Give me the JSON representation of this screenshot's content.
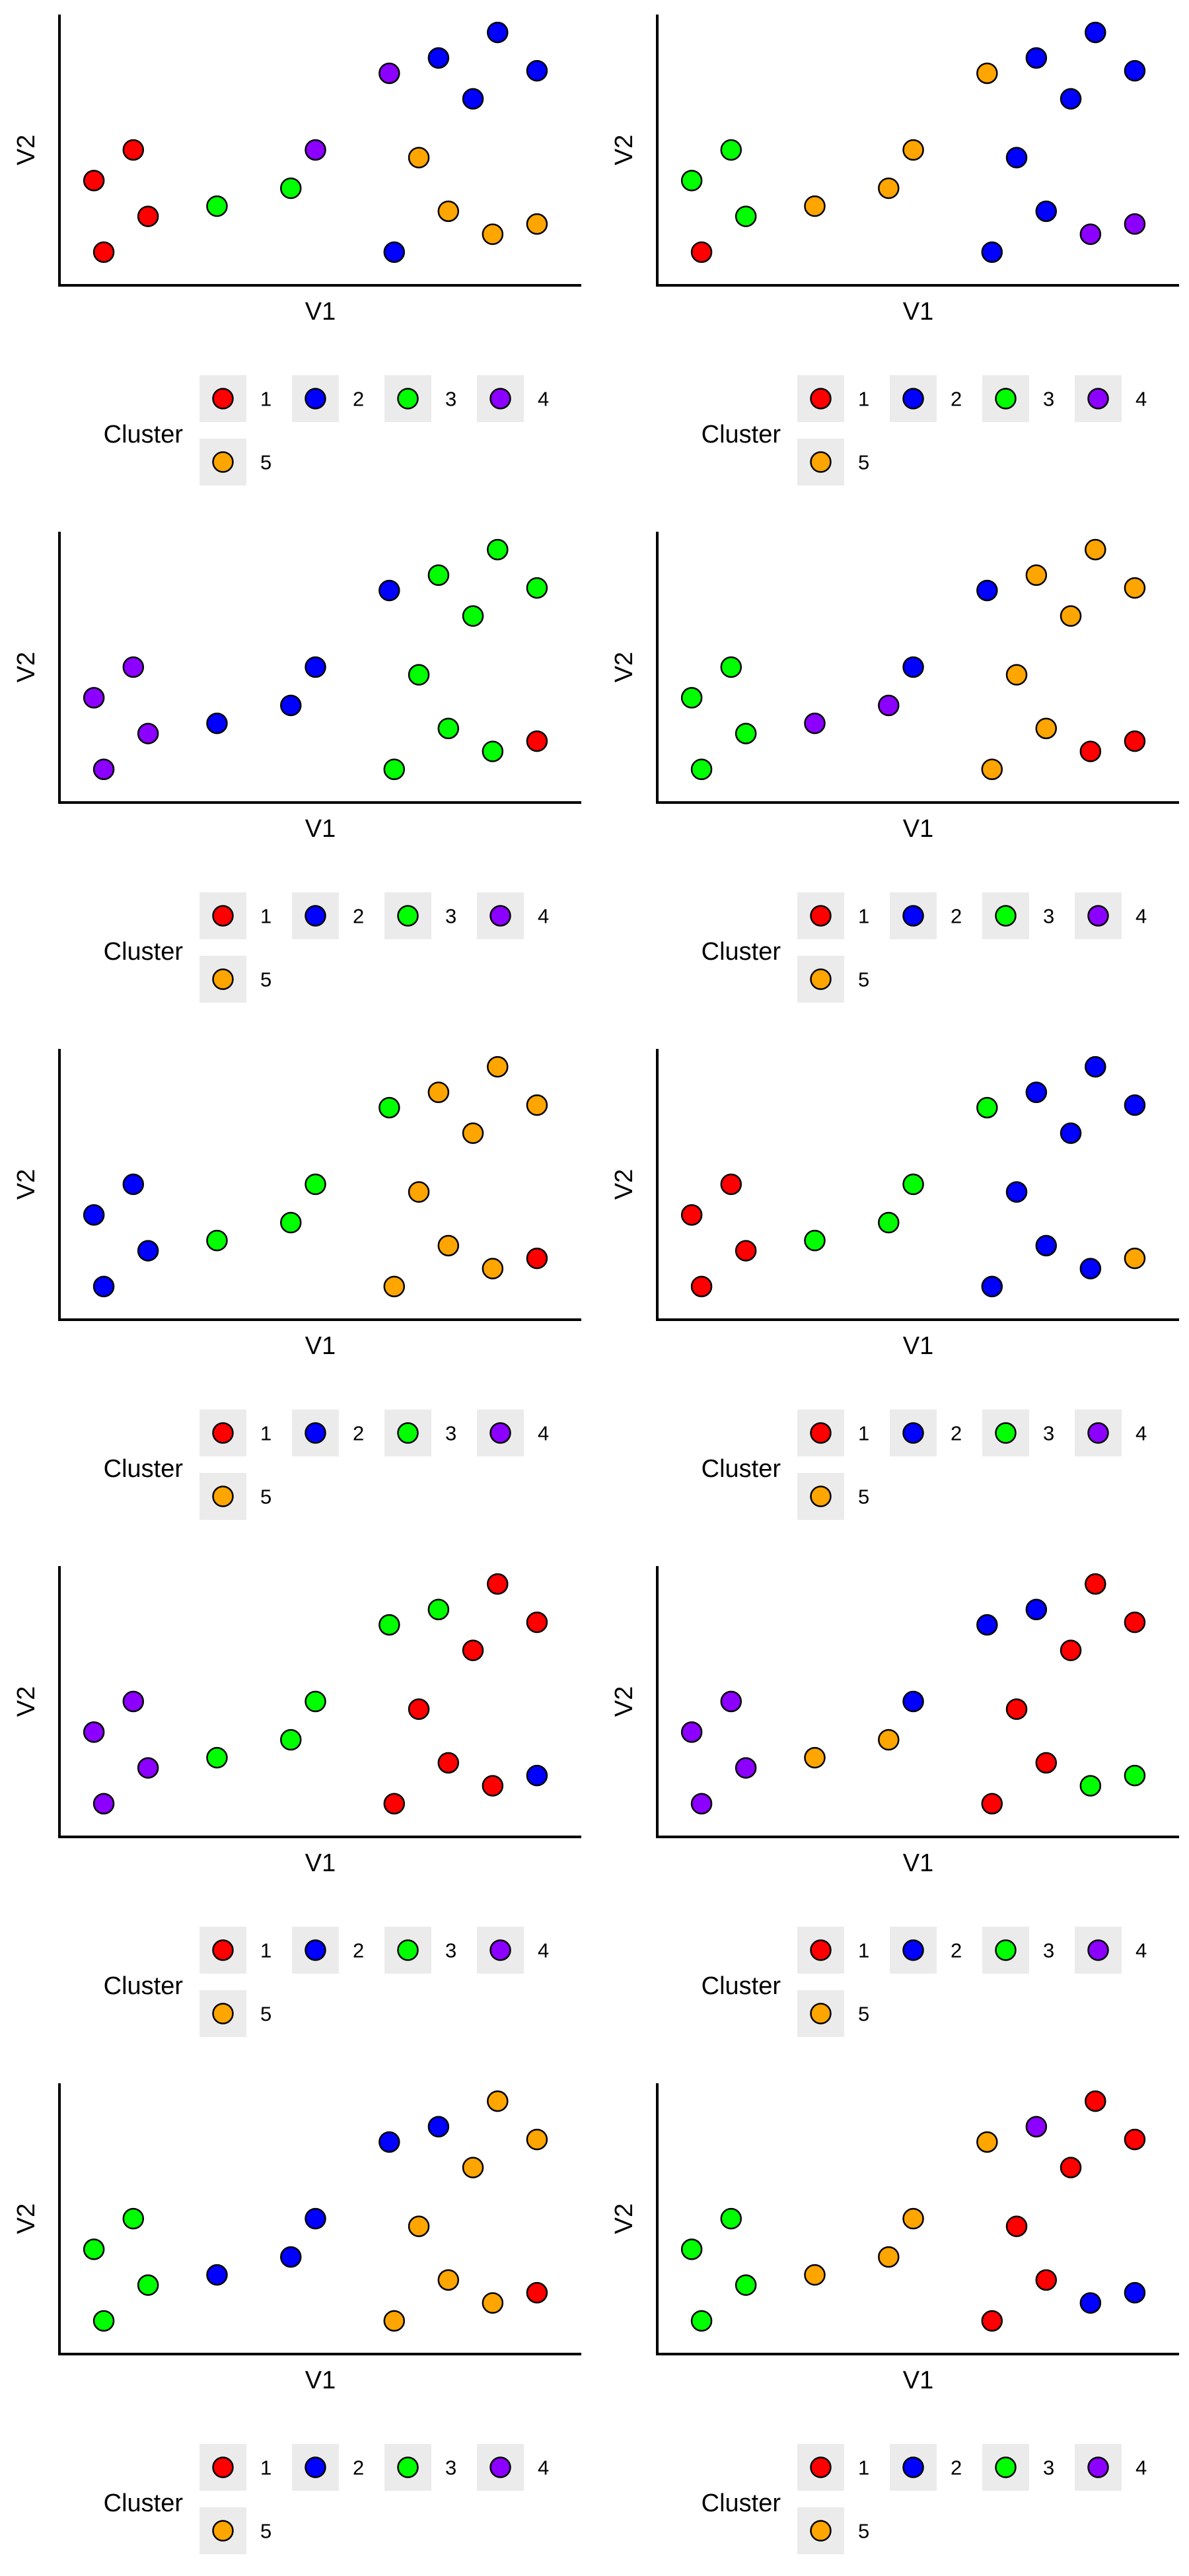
{
  "figure": {
    "xlabel": "V1",
    "ylabel": "V2",
    "legend": {
      "title": "Cluster",
      "entries": [
        {
          "label": "1",
          "color": "#ff0000"
        },
        {
          "label": "2",
          "color": "#0000ff"
        },
        {
          "label": "3",
          "color": "#00ff00"
        },
        {
          "label": "4",
          "color": "#8b00ff"
        },
        {
          "label": "5",
          "color": "#ffa500"
        }
      ]
    }
  },
  "chart_data": [
    {
      "type": "scatter",
      "title": "",
      "xlabel": "V1",
      "ylabel": "V2",
      "legend_title": "Cluster",
      "xlim": [
        0,
        100
      ],
      "ylim": [
        0,
        100
      ],
      "grid": false,
      "legend_position": "bottom",
      "x": [
        4,
        12,
        6,
        15,
        29,
        44,
        49,
        64,
        70,
        65,
        76,
        86,
        81,
        94,
        74,
        85,
        94
      ],
      "y": [
        38,
        50,
        10,
        24,
        28,
        35,
        50,
        80,
        47,
        10,
        26,
        96,
        70,
        81,
        86,
        17,
        21
      ],
      "cluster": [
        "1",
        "1",
        "1",
        "1",
        "3",
        "3",
        "4",
        "4",
        "5",
        "2",
        "5",
        "2",
        "2",
        "2",
        "2",
        "5",
        "5"
      ]
    },
    {
      "type": "scatter",
      "title": "",
      "xlabel": "V1",
      "ylabel": "V2",
      "legend_title": "Cluster",
      "xlim": [
        0,
        100
      ],
      "ylim": [
        0,
        100
      ],
      "grid": false,
      "legend_position": "bottom",
      "x": [
        4,
        12,
        6,
        15,
        29,
        44,
        49,
        64,
        70,
        65,
        76,
        86,
        81,
        94,
        74,
        85,
        94
      ],
      "y": [
        38,
        50,
        10,
        24,
        28,
        35,
        50,
        80,
        47,
        10,
        26,
        96,
        70,
        81,
        86,
        17,
        21
      ],
      "cluster": [
        "3",
        "3",
        "1",
        "3",
        "5",
        "5",
        "5",
        "5",
        "2",
        "2",
        "2",
        "2",
        "2",
        "2",
        "2",
        "4",
        "4"
      ]
    },
    {
      "type": "scatter",
      "title": "",
      "xlabel": "V1",
      "ylabel": "V2",
      "legend_title": "Cluster",
      "xlim": [
        0,
        100
      ],
      "ylim": [
        0,
        100
      ],
      "grid": false,
      "legend_position": "bottom",
      "x": [
        4,
        12,
        6,
        15,
        29,
        44,
        49,
        64,
        70,
        65,
        76,
        86,
        81,
        94,
        74,
        85,
        94
      ],
      "y": [
        38,
        50,
        10,
        24,
        28,
        35,
        50,
        80,
        47,
        10,
        26,
        96,
        70,
        81,
        86,
        17,
        21
      ],
      "cluster": [
        "4",
        "4",
        "4",
        "4",
        "2",
        "2",
        "2",
        "2",
        "3",
        "3",
        "3",
        "3",
        "3",
        "3",
        "3",
        "3",
        "1"
      ]
    },
    {
      "type": "scatter",
      "title": "",
      "xlabel": "V1",
      "ylabel": "V2",
      "legend_title": "Cluster",
      "xlim": [
        0,
        100
      ],
      "ylim": [
        0,
        100
      ],
      "grid": false,
      "legend_position": "bottom",
      "x": [
        4,
        12,
        6,
        15,
        29,
        44,
        49,
        64,
        70,
        65,
        76,
        86,
        81,
        94,
        74,
        85,
        94
      ],
      "y": [
        38,
        50,
        10,
        24,
        28,
        35,
        50,
        80,
        47,
        10,
        26,
        96,
        70,
        81,
        86,
        17,
        21
      ],
      "cluster": [
        "3",
        "3",
        "3",
        "3",
        "4",
        "4",
        "2",
        "2",
        "5",
        "5",
        "5",
        "5",
        "5",
        "5",
        "5",
        "1",
        "1"
      ]
    },
    {
      "type": "scatter",
      "title": "",
      "xlabel": "V1",
      "ylabel": "V2",
      "legend_title": "Cluster",
      "xlim": [
        0,
        100
      ],
      "ylim": [
        0,
        100
      ],
      "grid": false,
      "legend_position": "bottom",
      "x": [
        4,
        12,
        6,
        15,
        29,
        44,
        49,
        64,
        70,
        65,
        76,
        86,
        81,
        94,
        74,
        85,
        94
      ],
      "y": [
        38,
        50,
        10,
        24,
        28,
        35,
        50,
        80,
        47,
        10,
        26,
        96,
        70,
        81,
        86,
        17,
        21
      ],
      "cluster": [
        "2",
        "2",
        "2",
        "2",
        "3",
        "3",
        "3",
        "3",
        "5",
        "5",
        "5",
        "5",
        "5",
        "5",
        "5",
        "5",
        "1"
      ]
    },
    {
      "type": "scatter",
      "title": "",
      "xlabel": "V1",
      "ylabel": "V2",
      "legend_title": "Cluster",
      "xlim": [
        0,
        100
      ],
      "ylim": [
        0,
        100
      ],
      "grid": false,
      "legend_position": "bottom",
      "x": [
        4,
        12,
        6,
        15,
        29,
        44,
        49,
        64,
        70,
        65,
        76,
        86,
        81,
        94,
        74,
        85,
        94
      ],
      "y": [
        38,
        50,
        10,
        24,
        28,
        35,
        50,
        80,
        47,
        10,
        26,
        96,
        70,
        81,
        86,
        17,
        21
      ],
      "cluster": [
        "1",
        "1",
        "1",
        "1",
        "3",
        "3",
        "3",
        "3",
        "2",
        "2",
        "2",
        "2",
        "2",
        "2",
        "2",
        "2",
        "5"
      ]
    },
    {
      "type": "scatter",
      "title": "",
      "xlabel": "V1",
      "ylabel": "V2",
      "legend_title": "Cluster",
      "xlim": [
        0,
        100
      ],
      "ylim": [
        0,
        100
      ],
      "grid": false,
      "legend_position": "bottom",
      "x": [
        4,
        12,
        6,
        15,
        29,
        44,
        49,
        64,
        70,
        65,
        76,
        86,
        81,
        94,
        74,
        85,
        94
      ],
      "y": [
        38,
        50,
        10,
        24,
        28,
        35,
        50,
        80,
        47,
        10,
        26,
        96,
        70,
        81,
        86,
        17,
        21
      ],
      "cluster": [
        "4",
        "4",
        "4",
        "4",
        "3",
        "3",
        "3",
        "3",
        "1",
        "1",
        "1",
        "1",
        "1",
        "1",
        "3",
        "1",
        "2"
      ]
    },
    {
      "type": "scatter",
      "title": "",
      "xlabel": "V1",
      "ylabel": "V2",
      "legend_title": "Cluster",
      "xlim": [
        0,
        100
      ],
      "ylim": [
        0,
        100
      ],
      "grid": false,
      "legend_position": "bottom",
      "x": [
        4,
        12,
        6,
        15,
        29,
        44,
        49,
        64,
        70,
        65,
        76,
        86,
        81,
        94,
        74,
        85,
        94
      ],
      "y": [
        38,
        50,
        10,
        24,
        28,
        35,
        50,
        80,
        47,
        10,
        26,
        96,
        70,
        81,
        86,
        17,
        21
      ],
      "cluster": [
        "4",
        "4",
        "4",
        "4",
        "5",
        "5",
        "2",
        "2",
        "1",
        "1",
        "1",
        "1",
        "1",
        "1",
        "2",
        "3",
        "3"
      ]
    },
    {
      "type": "scatter",
      "title": "",
      "xlabel": "V1",
      "ylabel": "V2",
      "legend_title": "Cluster",
      "xlim": [
        0,
        100
      ],
      "ylim": [
        0,
        100
      ],
      "grid": false,
      "legend_position": "bottom",
      "x": [
        4,
        12,
        6,
        15,
        29,
        44,
        49,
        64,
        70,
        65,
        76,
        86,
        81,
        94,
        74,
        85,
        94
      ],
      "y": [
        38,
        50,
        10,
        24,
        28,
        35,
        50,
        80,
        47,
        10,
        26,
        96,
        70,
        81,
        86,
        17,
        21
      ],
      "cluster": [
        "3",
        "3",
        "3",
        "3",
        "2",
        "2",
        "2",
        "2",
        "5",
        "5",
        "5",
        "5",
        "5",
        "5",
        "2",
        "5",
        "1"
      ]
    },
    {
      "type": "scatter",
      "title": "",
      "xlabel": "V1",
      "ylabel": "V2",
      "legend_title": "Cluster",
      "xlim": [
        0,
        100
      ],
      "ylim": [
        0,
        100
      ],
      "grid": false,
      "legend_position": "bottom",
      "x": [
        4,
        12,
        6,
        15,
        29,
        44,
        49,
        64,
        70,
        65,
        76,
        86,
        81,
        94,
        74,
        85,
        94
      ],
      "y": [
        38,
        50,
        10,
        24,
        28,
        35,
        50,
        80,
        47,
        10,
        26,
        96,
        70,
        81,
        86,
        17,
        21
      ],
      "cluster": [
        "3",
        "3",
        "3",
        "3",
        "5",
        "5",
        "5",
        "5",
        "1",
        "1",
        "1",
        "1",
        "1",
        "1",
        "4",
        "2",
        "2"
      ]
    }
  ]
}
